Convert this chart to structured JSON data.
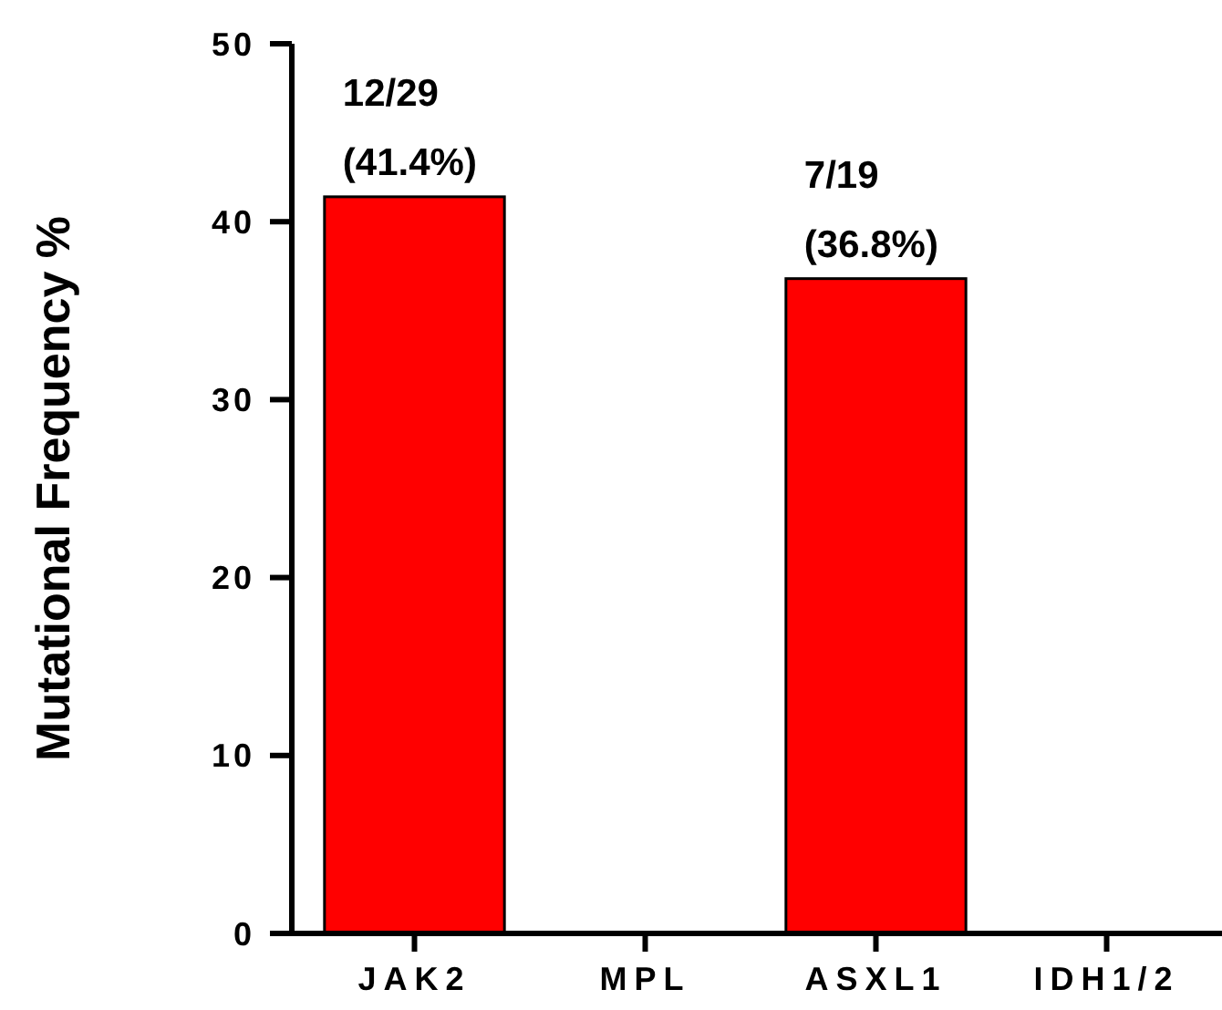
{
  "chart_data": {
    "type": "bar",
    "ylabel": "Mutational Frequency %",
    "categories": [
      "JAK2",
      "MPL",
      "ASXL1",
      "IDH1/2"
    ],
    "values": [
      41.4,
      0,
      36.8,
      0
    ],
    "color": "#ff0000",
    "value_labels": [
      "12/29\n(41.4%)",
      null,
      "7/19\n(36.8%)",
      null
    ],
    "ylim": [
      0,
      50
    ],
    "yticks": [
      0,
      10,
      20,
      30,
      40,
      50
    ],
    "grid": false
  }
}
